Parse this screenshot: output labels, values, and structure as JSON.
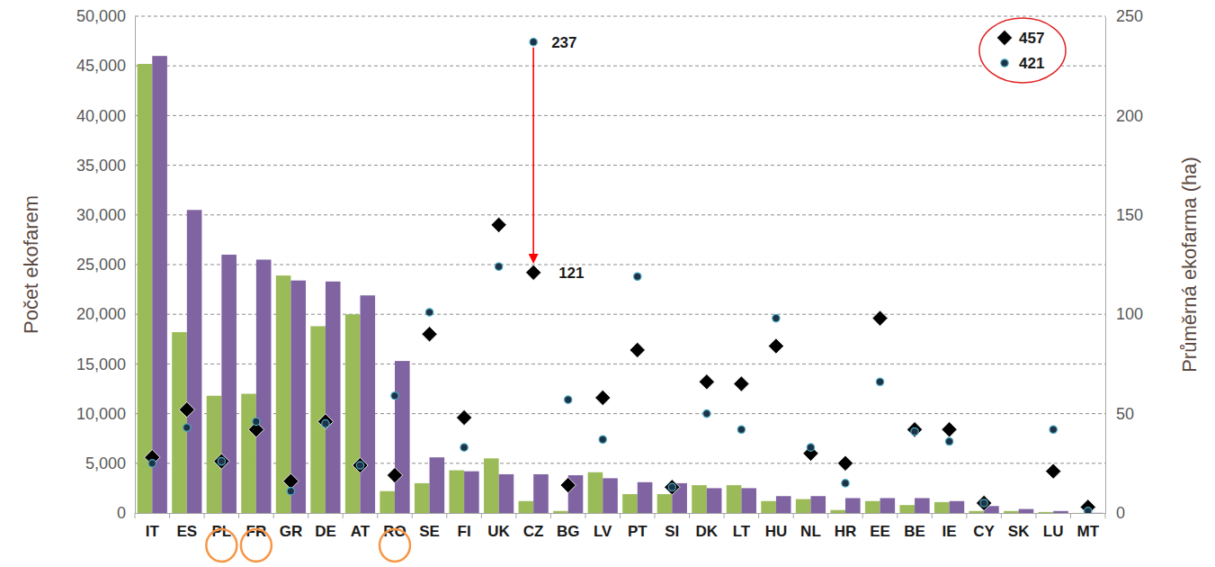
{
  "chart_data": {
    "type": "bar",
    "ylabel": "Počet ekofarem",
    "y2label": "Průměrná ekofarma (ha)",
    "categories": [
      "IT",
      "ES",
      "PL",
      "FR",
      "GR",
      "DE",
      "AT",
      "RO",
      "SE",
      "FI",
      "UK",
      "CZ",
      "BG",
      "LV",
      "PT",
      "SI",
      "DK",
      "LT",
      "HU",
      "NL",
      "HR",
      "EE",
      "BE",
      "IE",
      "CY",
      "SK",
      "LU",
      "MT"
    ],
    "series": [
      {
        "type": "bar",
        "color": "#9bbb59",
        "values": [
          45200,
          18200,
          11800,
          12000,
          23900,
          18800,
          20000,
          2200,
          3000,
          4300,
          5500,
          1200,
          200,
          4100,
          1900,
          1900,
          2800,
          2800,
          1200,
          1400,
          300,
          1200,
          800,
          1100,
          200,
          200,
          100,
          10
        ]
      },
      {
        "type": "bar",
        "color": "#8064a2",
        "values": [
          46000,
          30500,
          26000,
          25500,
          23400,
          23300,
          21900,
          15300,
          5600,
          4200,
          3900,
          3900,
          3800,
          3500,
          3100,
          3000,
          2500,
          2500,
          1700,
          1700,
          1500,
          1500,
          1500,
          1200,
          700,
          400,
          200,
          20
        ]
      },
      {
        "name": "457",
        "type": "scatter",
        "axis": "y2",
        "marker": "diamond",
        "color": "#000000",
        "values": [
          28,
          52,
          26,
          42,
          16,
          46,
          24,
          19,
          90,
          48,
          145,
          121,
          14,
          58,
          82,
          13,
          66,
          65,
          84,
          30,
          25,
          98,
          42,
          42,
          5,
          null,
          21,
          3
        ]
      },
      {
        "name": "421",
        "type": "scatter",
        "axis": "y2",
        "marker": "circle",
        "color": "#1f3346",
        "values": [
          25,
          43,
          26,
          46,
          11,
          45,
          24,
          59,
          101,
          33,
          124,
          237,
          57,
          37,
          119,
          13,
          50,
          42,
          98,
          33,
          15,
          66,
          41,
          36,
          5,
          null,
          42,
          1
        ]
      }
    ],
    "ylim": [
      0,
      50000
    ],
    "yticks": [
      0,
      {
        "value": 5000,
        "label": "5,000"
      },
      {
        "value": 10000,
        "label": "10,000"
      },
      {
        "value": 15000,
        "label": "15,000"
      },
      {
        "value": 20000,
        "label": "20,000"
      },
      {
        "value": 25000,
        "label": "25,000"
      },
      {
        "value": 30000,
        "label": "30,000"
      },
      {
        "value": 35000,
        "label": "35,000"
      },
      {
        "value": 40000,
        "label": "40,000"
      },
      {
        "value": 45000,
        "label": "45,000"
      },
      {
        "value": 50000,
        "label": "50,000"
      }
    ],
    "y2lim": [
      0,
      250
    ],
    "y2ticks": [
      0,
      50,
      100,
      150,
      200,
      250
    ],
    "grid": true,
    "legend": "top-right",
    "annotations": [
      {
        "text": "237",
        "category": "CZ"
      },
      {
        "text": "121",
        "category": "CZ"
      }
    ],
    "highlighted_categories": [
      "PL",
      "FR",
      "RO"
    ]
  }
}
